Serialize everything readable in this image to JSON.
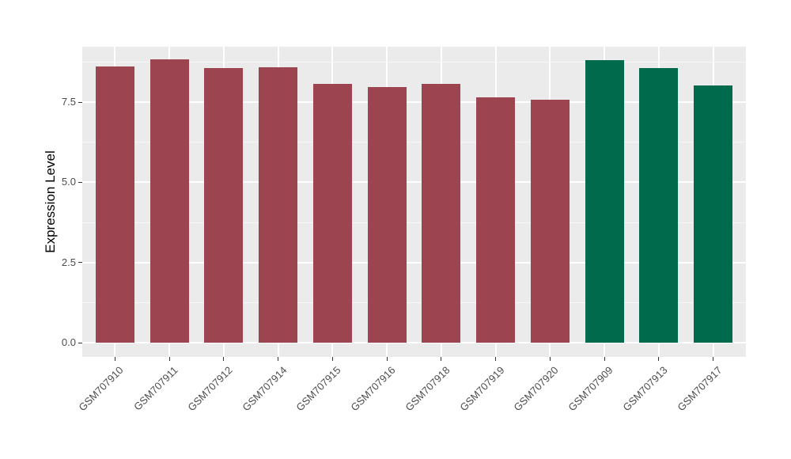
{
  "chart_data": {
    "type": "bar",
    "title": "",
    "xlabel": "",
    "ylabel": "Expression Level",
    "categories": [
      "GSM707910",
      "GSM707911",
      "GSM707912",
      "GSM707914",
      "GSM707915",
      "GSM707916",
      "GSM707918",
      "GSM707919",
      "GSM707920",
      "GSM707909",
      "GSM707913",
      "GSM707917"
    ],
    "values": [
      8.61,
      8.83,
      8.56,
      8.59,
      8.07,
      7.96,
      8.07,
      7.64,
      7.58,
      8.81,
      8.57,
      8.03
    ],
    "bar_colors": [
      "#9C4551",
      "#9C4551",
      "#9C4551",
      "#9C4551",
      "#9C4551",
      "#9C4551",
      "#9C4551",
      "#9C4551",
      "#9C4551",
      "#006B4C",
      "#006B4C",
      "#006B4C"
    ],
    "group_palette": {
      "maroon_group": "#9C4551",
      "green_group": "#006B4C"
    },
    "y_axis": {
      "ticks": [
        0,
        2.5,
        5,
        7.5
      ],
      "tick_labels": [
        "0.0",
        "2.5",
        "5.0",
        "7.5"
      ],
      "minor_ticks": [
        1.25,
        3.75,
        6.25,
        8.75
      ],
      "panel_range": [
        -0.44,
        9.23
      ]
    },
    "x_axis": {
      "label_angle_deg": 45
    },
    "legend": "none",
    "grid": true,
    "style": {
      "background": "#FFFFFF",
      "panel_bg": "#EBEBEB",
      "grid_major_color": "#FFFFFF",
      "grid_minor_color": "#FFFFFF",
      "tick_mark_color": "#333333",
      "tick_label_color": "#4D4D4D",
      "axis_title_color": "#000000"
    }
  }
}
